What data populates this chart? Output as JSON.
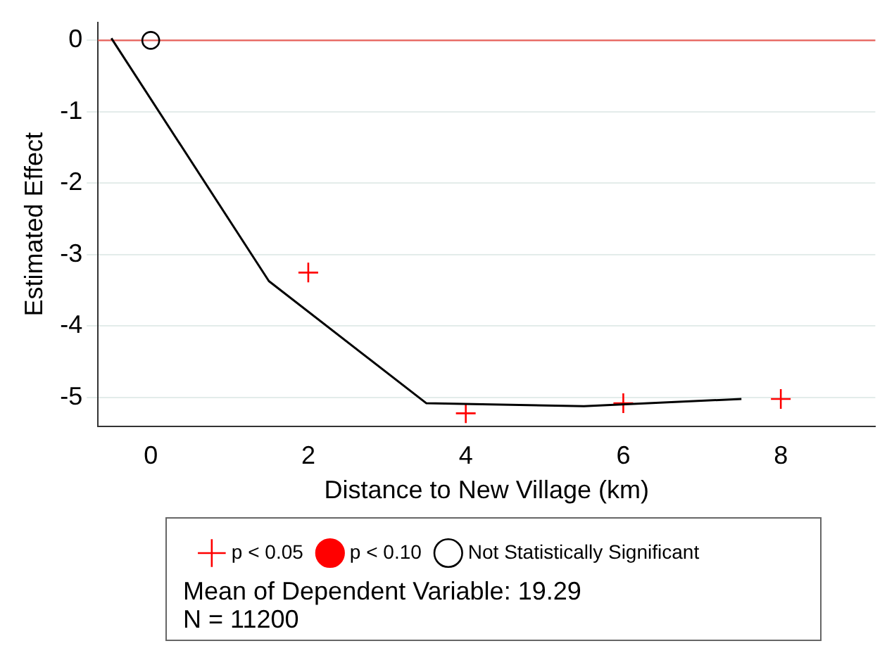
{
  "chart_data": {
    "type": "scatter",
    "xlabel": "Distance to New Village (km)",
    "ylabel": "Estimated Effect",
    "xlim": [
      -0.67,
      9.2
    ],
    "ylim": [
      -5.4,
      0.25
    ],
    "xticks": [
      0,
      2,
      4,
      6,
      8
    ],
    "yticks": [
      0,
      -1,
      -2,
      -3,
      -4,
      -5
    ],
    "grid": "y",
    "legend": "bottom",
    "series": [
      {
        "type": "line",
        "color": "#000000",
        "marker": "none",
        "x": [
          -0.5,
          1.5,
          3.5,
          5.5,
          7.5
        ],
        "values": [
          0.03,
          -3.37,
          -5.08,
          -5.12,
          -5.02
        ]
      },
      {
        "name": "p < 0.05",
        "color": "#ff0000",
        "marker": "cross",
        "x": [
          2,
          4,
          6,
          8
        ],
        "values": [
          -3.25,
          -5.22,
          -5.08,
          -5.02
        ]
      },
      {
        "name": "p < 0.10",
        "color": "#ff0000",
        "marker": "circle"
      },
      {
        "name": "Not Statistically Significant",
        "color": "#000000",
        "marker": "circle",
        "x": [
          0
        ],
        "values": [
          0
        ]
      }
    ],
    "ref_lines": [
      {
        "axis": "y",
        "value": 0,
        "color": "#e8605a"
      }
    ],
    "annotations": [
      "Mean of Dependent Variable: 19.29",
      "N = 11200"
    ]
  }
}
